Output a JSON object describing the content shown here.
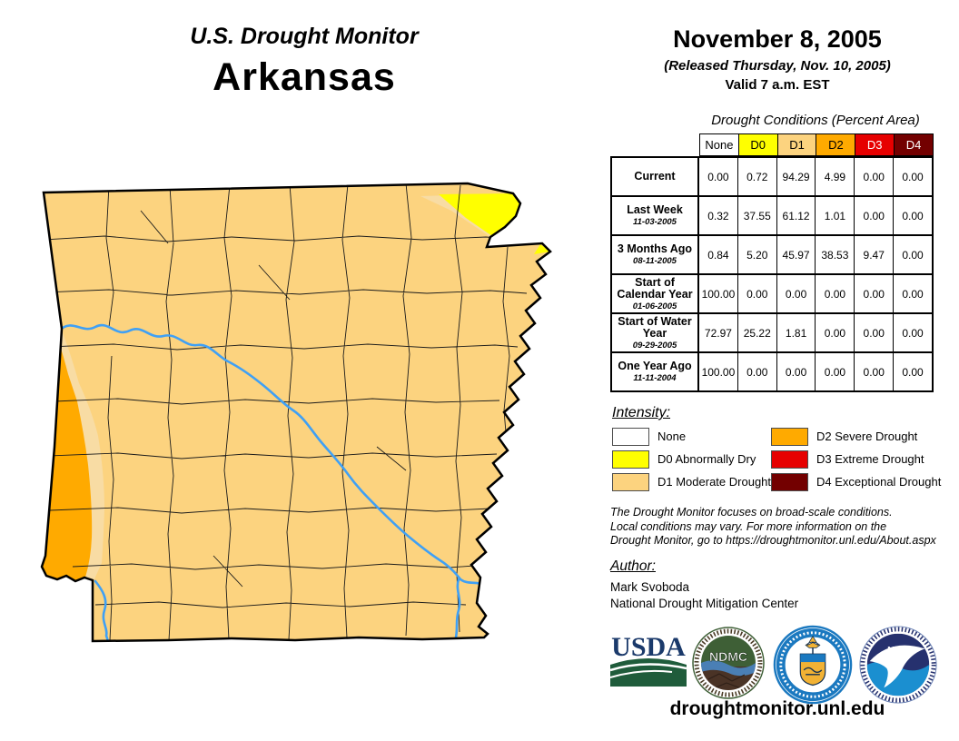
{
  "header": {
    "title": "U.S. Drought Monitor",
    "state": "Arkansas"
  },
  "date_block": {
    "date": "November 8, 2005",
    "released": "(Released Thursday, Nov. 10, 2005)",
    "valid": "Valid 7 a.m. EST"
  },
  "table": {
    "title": "Drought Conditions (Percent Area)",
    "columns": [
      {
        "label": "None",
        "bg": "#FFFFFF",
        "fg": "#000000"
      },
      {
        "label": "D0",
        "bg": "#FFFF00",
        "fg": "#000000"
      },
      {
        "label": "D1",
        "bg": "#FCD37F",
        "fg": "#000000"
      },
      {
        "label": "D2",
        "bg": "#FFAA00",
        "fg": "#000000"
      },
      {
        "label": "D3",
        "bg": "#E60000",
        "fg": "#FFFFFF"
      },
      {
        "label": "D4",
        "bg": "#730000",
        "fg": "#FFFFFF"
      }
    ],
    "rows": [
      {
        "label": "Current",
        "sublabel": "",
        "values": [
          "0.00",
          "0.72",
          "94.29",
          "4.99",
          "0.00",
          "0.00"
        ]
      },
      {
        "label": "Last Week",
        "sublabel": "11-03-2005",
        "values": [
          "0.32",
          "37.55",
          "61.12",
          "1.01",
          "0.00",
          "0.00"
        ]
      },
      {
        "label": "3 Months Ago",
        "sublabel": "08-11-2005",
        "values": [
          "0.84",
          "5.20",
          "45.97",
          "38.53",
          "9.47",
          "0.00"
        ]
      },
      {
        "label": "Start of Calendar Year",
        "sublabel": "01-06-2005",
        "values": [
          "100.00",
          "0.00",
          "0.00",
          "0.00",
          "0.00",
          "0.00"
        ]
      },
      {
        "label": "Start of Water Year",
        "sublabel": "09-29-2005",
        "values": [
          "72.97",
          "25.22",
          "1.81",
          "0.00",
          "0.00",
          "0.00"
        ]
      },
      {
        "label": "One Year Ago",
        "sublabel": "11-11-2004",
        "values": [
          "100.00",
          "0.00",
          "0.00",
          "0.00",
          "0.00",
          "0.00"
        ]
      }
    ]
  },
  "legend": {
    "heading": "Intensity:",
    "columns": [
      [
        {
          "color": "#FFFFFF",
          "label": "None"
        },
        {
          "color": "#FFFF00",
          "label": "D0 Abnormally Dry"
        },
        {
          "color": "#FCD37F",
          "label": "D1 Moderate Drought"
        }
      ],
      [
        {
          "color": "#FFAA00",
          "label": "D2 Severe Drought"
        },
        {
          "color": "#E60000",
          "label": "D3 Extreme Drought"
        },
        {
          "color": "#730000",
          "label": "D4 Exceptional Drought"
        }
      ]
    ]
  },
  "notes": {
    "lines": [
      "The Drought Monitor focuses on broad-scale conditions.",
      "Local conditions may vary. For more information on the",
      "Drought Monitor, go to https://droughtmonitor.unl.edu/About.aspx"
    ]
  },
  "author": {
    "heading": "Author:",
    "name": "Mark Svoboda",
    "org": "National Drought Mitigation Center"
  },
  "footer": {
    "url": "droughtmonitor.unl.edu"
  },
  "logos": {
    "usda": "USDA",
    "ndmc": "NDMC",
    "noaa": "NOAA"
  },
  "map": {
    "colors": {
      "none": "#FFFFFF",
      "d0": "#FFFF00",
      "d1": "#FCD37F",
      "d1_light": "#F8DCA4",
      "d2": "#FFAA00",
      "river": "#3FA0F5",
      "border": "#000000",
      "county": "#1a1a1a"
    }
  }
}
